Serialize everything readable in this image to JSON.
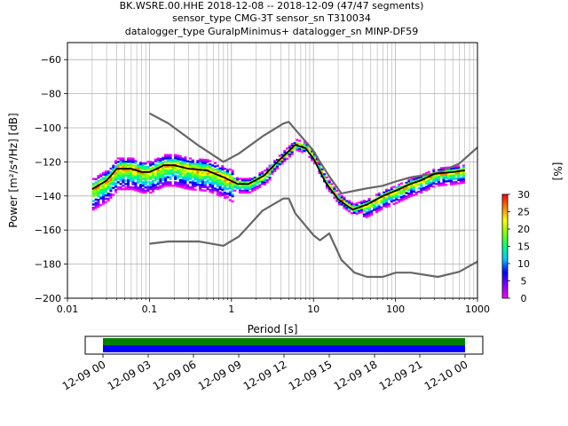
{
  "chart_data": [
    {
      "type": "heatmap",
      "title_lines": [
        "BK.WSRE.00.HHE   2018-12-08 -- 2018-12-09  (47/47 segments)",
        "sensor_type CMG-3T sensor_sn T310034",
        "datalogger_type GuralpMinimus+ datalogger_sn MINP-DF59"
      ],
      "xlabel": "Period [s]",
      "ylabel": "Power [m²/s⁴/Hz] [dB]",
      "xscale": "log",
      "xlim": [
        0.01,
        1000
      ],
      "ylim": [
        -200,
        -50
      ],
      "x_ticks": [
        0.01,
        0.1,
        1,
        10,
        100,
        1000
      ],
      "x_tick_labels": [
        "0.01",
        "0.1",
        "1",
        "10",
        "100",
        "1000"
      ],
      "y_ticks": [
        -200,
        -180,
        -160,
        -140,
        -120,
        -100,
        -80,
        -60
      ],
      "y_tick_labels": [
        "−200",
        "−180",
        "−160",
        "−140",
        "−120",
        "−100",
        "−80",
        "−60"
      ],
      "grid": true,
      "colorbar": {
        "label": "[%]",
        "range": [
          0,
          30
        ],
        "ticks": [
          0,
          5,
          10,
          15,
          20,
          25,
          30
        ],
        "tick_labels": [
          "0",
          "5",
          "10",
          "15",
          "20",
          "25",
          "30"
        ],
        "colormap": [
          "#ffffff",
          "#ff00ff",
          "#8000ff",
          "#0000ff",
          "#00c8ff",
          "#00ff80",
          "#80ff00",
          "#ffff00",
          "#ff8000",
          "#ff0000"
        ]
      },
      "series": [
        {
          "role": "noise-model-high",
          "color": "#666666",
          "x": [
            0.1,
            0.17,
            0.4,
            0.8,
            1.24,
            2.4,
            4.3,
            5.0,
            6.0,
            10.0,
            12.0,
            15.6,
            21.9,
            31.6,
            45.0,
            70.0,
            101.0,
            154.0,
            328.0,
            600.0,
            1000.0
          ],
          "y": [
            -91.5,
            -97.4,
            -110.5,
            -120.0,
            -115.0,
            -105.0,
            -97.5,
            -96.5,
            -101.0,
            -113.5,
            -120.0,
            -128.5,
            -138.5,
            -137.0,
            -135.5,
            -134.0,
            -131.5,
            -129.0,
            -126.5,
            -121.0,
            -111.5
          ]
        },
        {
          "role": "noise-model-low",
          "color": "#666666",
          "x": [
            0.1,
            0.17,
            0.4,
            0.8,
            1.24,
            2.4,
            4.3,
            5.0,
            6.0,
            10.0,
            12.0,
            15.6,
            21.9,
            31.6,
            45.0,
            70.0,
            101.0,
            154.0,
            328.0,
            600.0,
            1000.0
          ],
          "y": [
            -168.0,
            -166.7,
            -166.7,
            -169.2,
            -163.7,
            -148.6,
            -141.5,
            -141.5,
            -150.2,
            -163.0,
            -166.0,
            -162.0,
            -177.5,
            -185.0,
            -187.5,
            -187.5,
            -185.0,
            -185.0,
            -187.5,
            -184.5,
            -178.5
          ]
        },
        {
          "role": "mean",
          "color": "#000000",
          "x": [
            0.02,
            0.03,
            0.04,
            0.06,
            0.08,
            0.1,
            0.15,
            0.2,
            0.3,
            0.5,
            0.8,
            1.2,
            1.6,
            2.5,
            4.0,
            6.0,
            8.0,
            10.0,
            14.0,
            20.0,
            30.0,
            45.0,
            70.0,
            100.0,
            150.0,
            200.0,
            300.0,
            500.0,
            700.0
          ],
          "y": [
            -136.0,
            -131.0,
            -124.0,
            -124.0,
            -126.0,
            -126.0,
            -122.0,
            -122.0,
            -124.0,
            -125.0,
            -129.0,
            -133.0,
            -133.0,
            -128.0,
            -118.0,
            -110.0,
            -112.0,
            -118.0,
            -132.0,
            -142.0,
            -148.0,
            -145.0,
            -140.0,
            -137.0,
            -133.0,
            -131.0,
            -127.0,
            -126.0,
            -125.0
          ]
        }
      ]
    },
    {
      "type": "timeline",
      "x_tick_labels": [
        "12-09 00",
        "12-09 03",
        "12-09 06",
        "12-09 09",
        "12-09 12",
        "12-09 15",
        "12-09 18",
        "12-09 21",
        "12-10 00"
      ],
      "bands": [
        {
          "color": "#008000"
        },
        {
          "color": "#0000ff"
        }
      ]
    }
  ]
}
